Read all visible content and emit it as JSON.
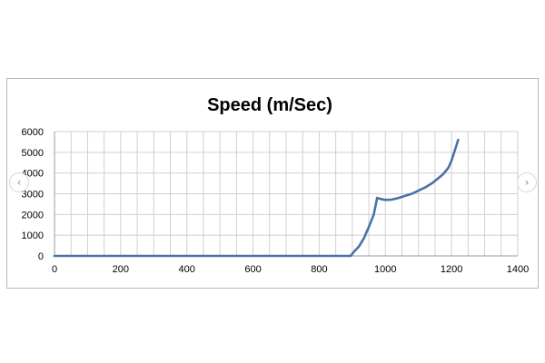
{
  "carousel": {
    "prev_symbol": "‹",
    "next_symbol": "›"
  },
  "chart_data": {
    "type": "line",
    "title": "Speed (m/Sec)",
    "xlabel": "",
    "ylabel": "",
    "xlim": [
      0,
      1400
    ],
    "ylim": [
      0,
      6000
    ],
    "x_ticks": [
      0,
      200,
      400,
      600,
      800,
      1000,
      1200,
      1400
    ],
    "y_ticks": [
      0,
      1000,
      2000,
      3000,
      4000,
      5000,
      6000
    ],
    "grid": true,
    "legend": "none",
    "line_color": "#4a72a8",
    "series": [
      {
        "x": [
          0,
          200,
          400,
          600,
          800,
          895,
          905,
          920,
          935,
          950,
          965,
          975,
          985,
          1000,
          1020,
          1040,
          1060,
          1080,
          1100,
          1120,
          1140,
          1160,
          1175,
          1190,
          1200,
          1210,
          1220
        ],
        "y": [
          0,
          0,
          0,
          0,
          0,
          0,
          200,
          450,
          850,
          1400,
          2000,
          2800,
          2750,
          2700,
          2720,
          2800,
          2900,
          3000,
          3150,
          3300,
          3500,
          3750,
          3950,
          4250,
          4600,
          5100,
          5600
        ]
      }
    ]
  }
}
